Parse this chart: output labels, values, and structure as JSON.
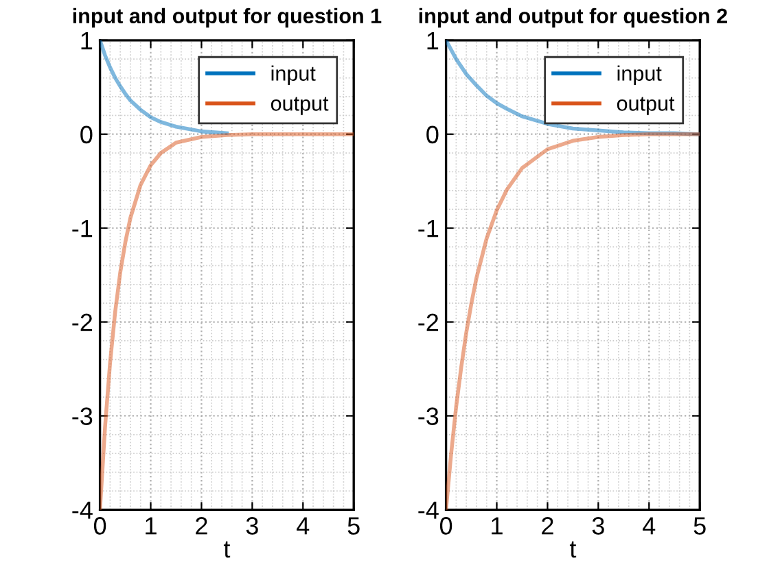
{
  "chart_data": [
    {
      "type": "line",
      "title": "input and output for question 1",
      "xlabel": "t",
      "xlim": [
        0,
        5
      ],
      "xticks": [
        0,
        1,
        2,
        3,
        4,
        5
      ],
      "ylim": [
        -4,
        1
      ],
      "yticks": [
        -4,
        -3,
        -2,
        -1,
        0,
        1
      ],
      "grid": true,
      "legend": "top right",
      "line_style": "solid",
      "x": [
        0,
        0.1,
        0.2,
        0.3,
        0.4,
        0.5,
        0.6,
        0.8,
        1.0,
        1.2,
        1.5,
        2,
        2.5,
        3,
        3.5,
        4,
        4.5,
        5
      ],
      "series": [
        {
          "name": "input",
          "color": "#0072bd",
          "values": [
            1,
            0.84,
            0.71,
            0.6,
            0.51,
            0.43,
            0.36,
            0.26,
            0.18,
            0.13,
            0.08,
            0.03,
            0.01,
            null,
            null,
            null,
            null,
            null
          ]
        },
        {
          "name": "output",
          "color": "#d95319",
          "values": [
            -4,
            -3.12,
            -2.43,
            -1.89,
            -1.47,
            -1.15,
            -0.89,
            -0.54,
            -0.33,
            -0.2,
            -0.09,
            -0.03,
            -0.01,
            0,
            0,
            0,
            0,
            0
          ]
        }
      ]
    },
    {
      "type": "line",
      "title": "input and output for question 2",
      "xlabel": "t",
      "xlim": [
        0,
        5
      ],
      "xticks": [
        0,
        1,
        2,
        3,
        4,
        5
      ],
      "ylim": [
        -4,
        1
      ],
      "yticks": [
        -4,
        -3,
        -2,
        -1,
        0,
        1
      ],
      "grid": true,
      "legend": "top right",
      "line_style": "solid",
      "x": [
        0,
        0.1,
        0.2,
        0.3,
        0.4,
        0.5,
        0.6,
        0.8,
        1.0,
        1.2,
        1.5,
        2,
        2.5,
        3,
        3.5,
        4,
        4.5,
        5
      ],
      "series": [
        {
          "name": "input",
          "color": "#0072bd",
          "values": [
            1,
            0.9,
            0.8,
            0.72,
            0.64,
            0.58,
            0.52,
            0.41,
            0.33,
            0.27,
            0.19,
            0.11,
            0.06,
            0.04,
            0.02,
            0.01,
            0.01,
            0
          ]
        },
        {
          "name": "output",
          "color": "#d95319",
          "values": [
            -4,
            -3.41,
            -2.9,
            -2.48,
            -2.11,
            -1.8,
            -1.53,
            -1.11,
            -0.81,
            -0.59,
            -0.36,
            -0.16,
            -0.07,
            -0.03,
            -0.01,
            0,
            0,
            0
          ]
        }
      ]
    }
  ]
}
